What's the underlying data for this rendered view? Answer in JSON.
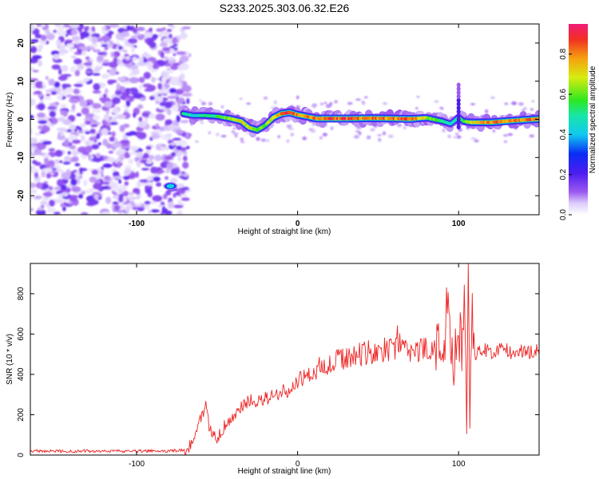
{
  "title": "S233.2025.303.06.32.E26",
  "colors": {
    "snr_line": "#ee2222",
    "ridge_hot": "#ee1c3c",
    "noise": "#9b59f0",
    "frame": "#000000"
  },
  "chart_data": [
    {
      "type": "heatmap",
      "name": "spectrogram",
      "xlabel": "Height of straight line (km)",
      "ylabel": "Frequency (Hz)",
      "xlim": [
        -166,
        150
      ],
      "ylim": [
        -25,
        25
      ],
      "x_ticks": [
        -100,
        0,
        100
      ],
      "x_tick_labels": [
        "-100",
        "0",
        "100"
      ],
      "y_ticks": [
        -20,
        -10,
        0,
        10,
        20
      ],
      "y_tick_labels": [
        "-20",
        "-10",
        "0",
        "10",
        "20"
      ],
      "noise_region_x": [
        -166,
        -71
      ],
      "ridge": {
        "x": [
          -71,
          -65,
          -58,
          -50,
          -42,
          -35,
          -30,
          -25,
          -20,
          -15,
          -10,
          -5,
          0,
          5,
          12,
          20,
          30,
          45,
          60,
          70,
          80,
          90,
          95,
          100,
          103,
          108,
          120,
          135,
          150
        ],
        "y": [
          1.5,
          1.0,
          1.0,
          0.8,
          0.2,
          -0.5,
          -2.2,
          -2.8,
          -1.5,
          0.5,
          1.5,
          1.8,
          1.2,
          0.8,
          0.2,
          0.2,
          0.2,
          0.3,
          0.2,
          0.1,
          0.4,
          -0.5,
          -1.2,
          0.5,
          -0.5,
          -0.8,
          -0.8,
          -0.3,
          0.1
        ],
        "amplitude": [
          0.55,
          0.5,
          0.55,
          0.6,
          0.7,
          0.75,
          0.75,
          0.7,
          0.65,
          0.8,
          0.95,
          0.95,
          0.9,
          0.85,
          0.9,
          0.95,
          0.95,
          0.9,
          0.9,
          0.95,
          0.7,
          0.6,
          0.5,
          0.55,
          0.6,
          0.75,
          0.9,
          0.9,
          0.95
        ]
      },
      "secondary_blob": {
        "x": -79,
        "y": -17.5,
        "amplitude": 0.45
      },
      "colorbar": {
        "label": "Normalized spectral amplitude",
        "range": [
          0,
          0.95
        ],
        "ticks": [
          0.0,
          0.2,
          0.4,
          0.6,
          0.8
        ],
        "tick_labels": [
          "0.0",
          "0.2",
          "0.4",
          "0.6",
          "0.8"
        ]
      }
    },
    {
      "type": "line",
      "name": "snr",
      "xlabel": "Height of straight line (km)",
      "ylabel": "SNR (10 * v/v)",
      "xlim": [
        -166,
        150
      ],
      "ylim": [
        0,
        950
      ],
      "x_ticks": [
        -100,
        0,
        100
      ],
      "x_tick_labels": [
        "-100",
        "0",
        "100"
      ],
      "y_ticks": [
        0,
        200,
        400,
        600,
        800
      ],
      "y_tick_labels": [
        "0",
        "200",
        "400",
        "600",
        "800"
      ],
      "series": [
        {
          "name": "SNR",
          "x": [
            -166,
            -150,
            -130,
            -110,
            -90,
            -80,
            -75,
            -70,
            -66,
            -62,
            -60,
            -58,
            -57,
            -55,
            -52,
            -50,
            -48,
            -45,
            -40,
            -35,
            -30,
            -25,
            -20,
            -15,
            -10,
            -5,
            0,
            5,
            10,
            15,
            20,
            25,
            30,
            35,
            40,
            45,
            50,
            55,
            60,
            62,
            65,
            70,
            75,
            80,
            85,
            88,
            90,
            93,
            95,
            97,
            100,
            102,
            104,
            105,
            106,
            107,
            108,
            110,
            115,
            120,
            125,
            130,
            135,
            140,
            145,
            150
          ],
          "y": [
            22,
            18,
            20,
            18,
            20,
            20,
            22,
            25,
            60,
            130,
            180,
            200,
            250,
            150,
            100,
            80,
            110,
            150,
            190,
            240,
            270,
            260,
            280,
            300,
            310,
            320,
            370,
            400,
            420,
            440,
            450,
            470,
            480,
            490,
            500,
            510,
            520,
            520,
            520,
            590,
            520,
            520,
            510,
            540,
            520,
            560,
            500,
            700,
            540,
            450,
            650,
            500,
            780,
            130,
            950,
            130,
            700,
            500,
            520,
            510,
            530,
            520,
            500,
            520,
            510,
            520
          ]
        }
      ]
    }
  ]
}
